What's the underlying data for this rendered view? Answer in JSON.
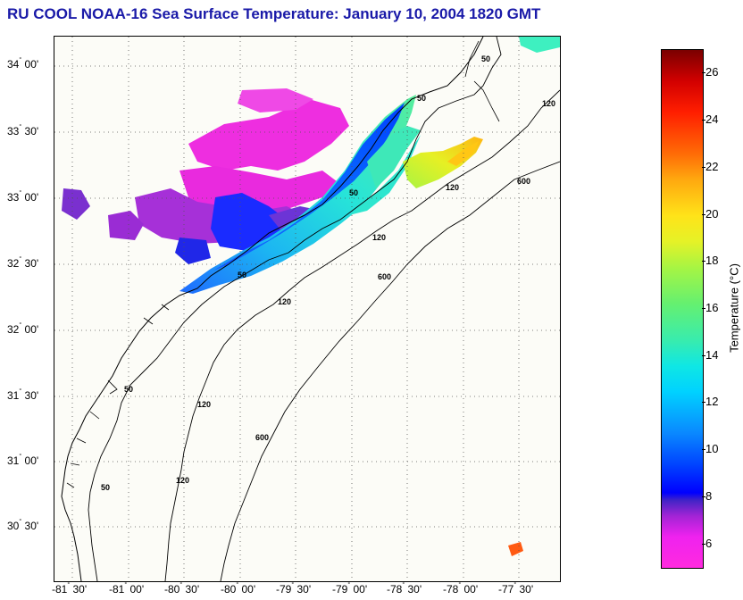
{
  "title": "RU COOL  NOAA-16  Sea Surface Temperature:  January 10, 2004 1820 GMT",
  "lat_labels": [
    {
      "deg": "34",
      "min": "00'"
    },
    {
      "deg": "33",
      "min": "30'"
    },
    {
      "deg": "33",
      "min": "00'"
    },
    {
      "deg": "32",
      "min": "30'"
    },
    {
      "deg": "32",
      "min": "00'"
    },
    {
      "deg": "31",
      "min": "30'"
    },
    {
      "deg": "31",
      "min": "00'"
    },
    {
      "deg": "30",
      "min": "30'"
    }
  ],
  "lon_labels": [
    {
      "deg": "-81",
      "min": "30'"
    },
    {
      "deg": "-81",
      "min": "00'"
    },
    {
      "deg": "-80",
      "min": "30'"
    },
    {
      "deg": "-80",
      "min": "00'"
    },
    {
      "deg": "-79",
      "min": "30'"
    },
    {
      "deg": "-79",
      "min": "00'"
    },
    {
      "deg": "-78",
      "min": "30'"
    },
    {
      "deg": "-78",
      "min": "00'"
    },
    {
      "deg": "-77",
      "min": "30'"
    }
  ],
  "contour_labels": [
    "50",
    "50",
    "50",
    "50",
    "50",
    "50",
    "120",
    "120",
    "120",
    "120",
    "120",
    "120",
    "600",
    "600",
    "600"
  ],
  "colorbar": {
    "title": "Temperature (°C)",
    "min": 5,
    "max": 27,
    "ticks": [
      "26",
      "24",
      "22",
      "20",
      "18",
      "16",
      "14",
      "12",
      "10",
      "8",
      "6"
    ]
  },
  "colors": {
    "title": "#1a1aa8",
    "coastline": "#000000",
    "land": "#fcfcf7"
  }
}
